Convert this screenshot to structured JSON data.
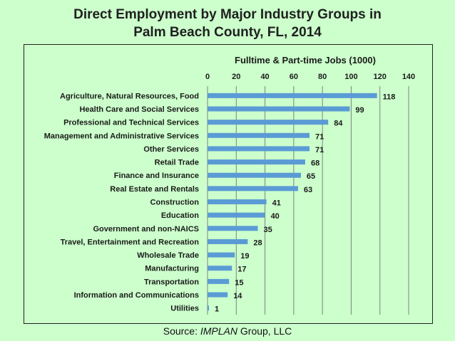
{
  "title_line1": "Direct Employment by Major Industry Groups in",
  "title_line2": "Palm Beach County, FL, 2014",
  "source_prefix": "Source: ",
  "source_italic": "IMPLAN",
  "source_suffix": " Group, LLC",
  "colors": {
    "background": "#ccffcc",
    "bar": "#5b9bd5",
    "grid": "#808080"
  },
  "chart_data": {
    "type": "bar",
    "orientation": "horizontal",
    "title": "Direct Employment by Major Industry Groups in Palm Beach County, FL, 2014",
    "xlabel": "Fulltime & Part-time Jobs (1000)",
    "ylabel": "",
    "xlim": [
      0,
      140
    ],
    "xticks": [
      0,
      20,
      40,
      60,
      80,
      100,
      120,
      140
    ],
    "grid": "vertical",
    "categories": [
      "Agriculture, Natural Resources, Food",
      "Health Care and Social Services",
      "Professional and Technical Services",
      "Management and Administrative Services",
      "Other Services",
      "Retail Trade",
      "Finance and Insurance",
      "Real Estate and Rentals",
      "Construction",
      "Education",
      "Government and non-NAICS",
      "Travel, Entertainment and Recreation",
      "Wholesale Trade",
      "Manufacturing",
      "Transportation",
      "Information and Communications",
      "Utilities"
    ],
    "values": [
      118,
      99,
      84,
      71,
      71,
      68,
      65,
      63,
      41,
      40,
      35,
      28,
      19,
      17,
      15,
      14,
      1
    ]
  }
}
